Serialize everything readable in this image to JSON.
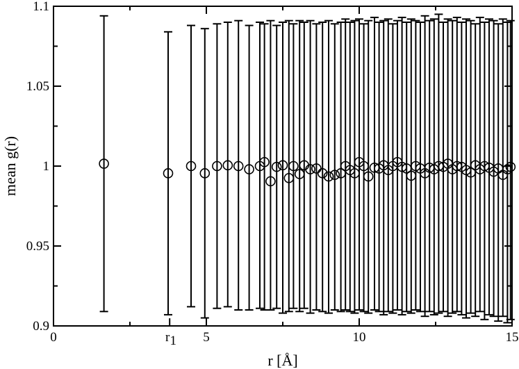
{
  "chart_data": {
    "type": "scatter",
    "title": "",
    "xlabel": "r [Å]",
    "ylabel": "mean g(r)",
    "xlim": [
      0,
      15
    ],
    "ylim": [
      0.9,
      1.1
    ],
    "x_ticks": [
      0,
      5,
      10,
      15
    ],
    "x_tick_labels": [
      "0",
      "5",
      "10",
      "15"
    ],
    "x_minor_ticks": [
      2.5,
      7.5,
      12.5
    ],
    "y_ticks": [
      0.9,
      0.95,
      1.0,
      1.05,
      1.1
    ],
    "y_tick_labels": [
      "0.9",
      "0.95",
      "1",
      "1.05",
      "1.1"
    ],
    "annotations": [
      {
        "text": "r",
        "subscript": "1",
        "x": 3.8
      }
    ],
    "grid": false,
    "marker": "open-circle",
    "error_bars": true,
    "series": [
      {
        "x": [
          1.65,
          3.75,
          4.5,
          4.95,
          5.35,
          5.7,
          6.05,
          6.4,
          6.75,
          6.9,
          7.1,
          7.3,
          7.5,
          7.7,
          7.85,
          8.05,
          8.2,
          8.4,
          8.6,
          8.8,
          9.0,
          9.2,
          9.4,
          9.55,
          9.7,
          9.85,
          10.0,
          10.15,
          10.3,
          10.5,
          10.65,
          10.8,
          10.95,
          11.1,
          11.25,
          11.4,
          11.55,
          11.7,
          11.85,
          12.0,
          12.15,
          12.3,
          12.45,
          12.6,
          12.75,
          12.9,
          13.05,
          13.2,
          13.35,
          13.5,
          13.65,
          13.8,
          13.95,
          14.1,
          14.25,
          14.4,
          14.55,
          14.7,
          14.85,
          14.95
        ],
        "y": [
          1.0015,
          0.9955,
          1.0,
          0.9955,
          1.0,
          1.0005,
          1.0,
          0.998,
          1.0,
          1.0025,
          0.9905,
          0.9995,
          1.0005,
          0.9925,
          1.0,
          0.995,
          1.0005,
          0.998,
          0.9985,
          0.9955,
          0.9935,
          0.9945,
          0.9955,
          1.0,
          0.9975,
          0.9955,
          1.0025,
          1.0,
          0.9935,
          0.999,
          0.9985,
          1.0005,
          0.9975,
          1.0,
          1.0025,
          0.9995,
          0.9985,
          0.994,
          1.0,
          0.9985,
          0.9955,
          0.999,
          0.998,
          1.0,
          0.9995,
          1.0015,
          0.998,
          1.0,
          0.9995,
          0.9975,
          0.996,
          1.0005,
          0.998,
          1.0,
          0.999,
          0.9965,
          0.9985,
          0.9945,
          0.998,
          0.9995
        ],
        "err_low": [
          0.909,
          0.907,
          0.912,
          0.905,
          0.911,
          0.912,
          0.91,
          0.91,
          0.911,
          0.91,
          0.91,
          0.911,
          0.908,
          0.909,
          0.911,
          0.909,
          0.911,
          0.908,
          0.91,
          0.909,
          0.908,
          0.91,
          0.909,
          0.91,
          0.909,
          0.908,
          0.91,
          0.909,
          0.908,
          0.91,
          0.909,
          0.907,
          0.909,
          0.908,
          0.91,
          0.907,
          0.909,
          0.908,
          0.91,
          0.909,
          0.906,
          0.909,
          0.907,
          0.908,
          0.909,
          0.906,
          0.908,
          0.909,
          0.907,
          0.905,
          0.908,
          0.906,
          0.909,
          0.904,
          0.907,
          0.906,
          0.903,
          0.906,
          0.902,
          0.904
        ],
        "err_high": [
          1.094,
          1.084,
          1.088,
          1.086,
          1.089,
          1.09,
          1.091,
          1.088,
          1.09,
          1.089,
          1.091,
          1.088,
          1.09,
          1.091,
          1.089,
          1.091,
          1.09,
          1.091,
          1.089,
          1.09,
          1.091,
          1.089,
          1.09,
          1.092,
          1.09,
          1.091,
          1.092,
          1.089,
          1.091,
          1.093,
          1.09,
          1.091,
          1.092,
          1.089,
          1.091,
          1.093,
          1.09,
          1.092,
          1.091,
          1.09,
          1.094,
          1.091,
          1.092,
          1.095,
          1.09,
          1.092,
          1.091,
          1.093,
          1.09,
          1.092,
          1.091,
          1.089,
          1.093,
          1.09,
          1.092,
          1.091,
          1.089,
          1.092,
          1.09,
          1.091
        ]
      }
    ]
  }
}
